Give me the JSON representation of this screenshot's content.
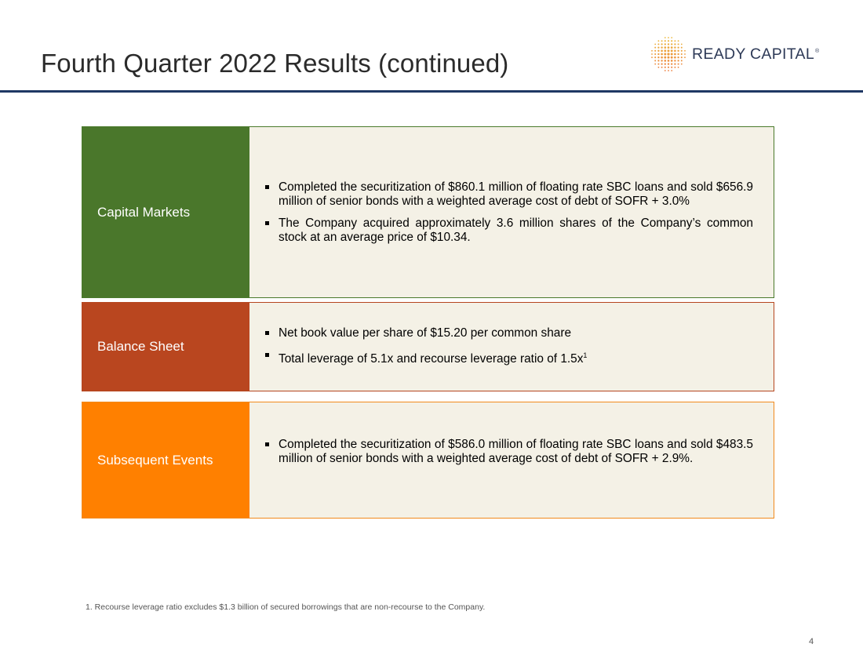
{
  "header": {
    "title": "Fourth Quarter 2022 Results (continued)",
    "logo_text": "READY CAPITAL",
    "logo_mark": "®"
  },
  "sections": [
    {
      "label": "Capital Markets",
      "color": "#4a772b",
      "bullets": [
        "Completed the securitization of $860.1 million of floating rate SBC loans and sold $656.9 million of senior bonds with a weighted average cost of debt of SOFR + 3.0%",
        "The Company acquired approximately 3.6 million shares of the Company’s common stock at an average price of $10.34."
      ]
    },
    {
      "label": "Balance Sheet",
      "color": "#b9461f",
      "bullets": [
        "Net book value per share of $15.20 per common share",
        "Total leverage of 5.1x and recourse leverage ratio of 1.5x"
      ],
      "superscript": "1"
    },
    {
      "label": "Subsequent Events",
      "color": "#ff8000",
      "bullets": [
        "Completed the securitization of $586.0 million of floating rate SBC loans and sold $483.5 million of senior bonds with a weighted average cost of debt of SOFR + 2.9%."
      ]
    }
  ],
  "footnote": "1. Recourse leverage ratio excludes $1.3 billion of secured borrowings that are non-recourse to the Company.",
  "page_number": "4"
}
